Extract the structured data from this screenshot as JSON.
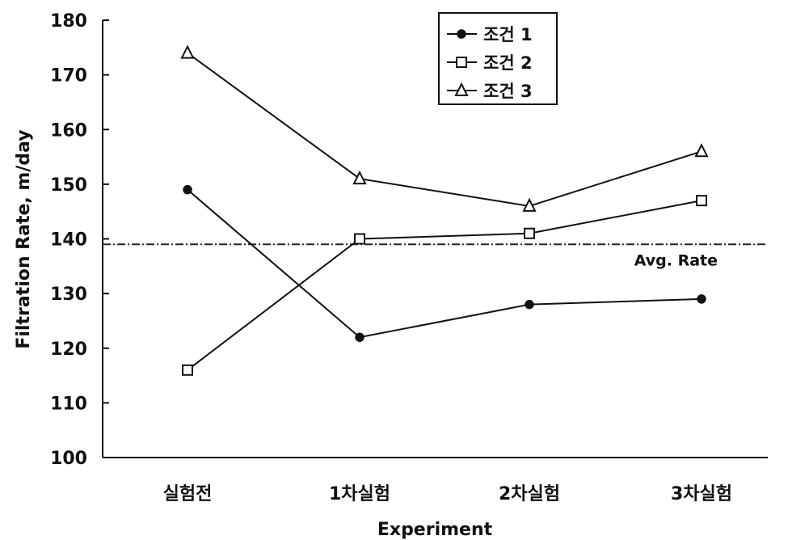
{
  "chart_data": {
    "type": "line",
    "title": "",
    "xlabel": "Experiment",
    "ylabel": "Filtration Rate, m/day",
    "ylim": [
      100,
      180
    ],
    "yticks": [
      100,
      110,
      120,
      130,
      140,
      150,
      160,
      170,
      180
    ],
    "categories": [
      "실험전",
      "1차실험",
      "2차실험",
      "3차실험"
    ],
    "series": [
      {
        "name": "조건 1",
        "marker": "circle-filled",
        "values": [
          149,
          122,
          128,
          129
        ]
      },
      {
        "name": "조건 2",
        "marker": "square-open",
        "values": [
          116,
          140,
          141,
          147
        ]
      },
      {
        "name": "조건 3",
        "marker": "triangle-open",
        "values": [
          174,
          151,
          146,
          156
        ]
      }
    ],
    "reference_line": {
      "value": 139,
      "label": "Avg. Rate",
      "style": "dashed"
    },
    "legend_position": "top-center",
    "grid": false
  }
}
